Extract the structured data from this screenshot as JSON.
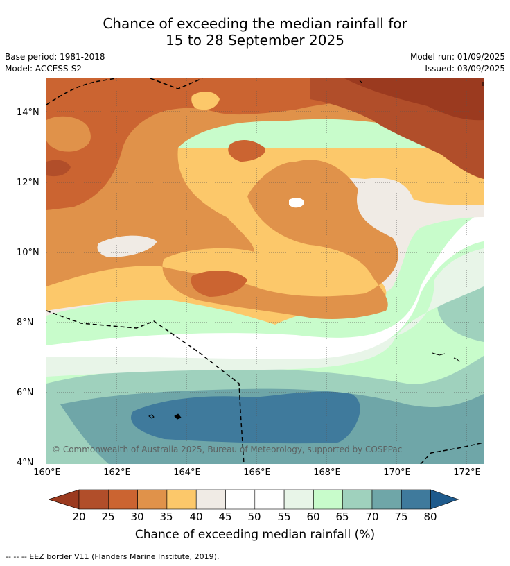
{
  "title": {
    "line1": "Chance of exceeding the median rainfall for",
    "line2": "15 to 28 September 2025"
  },
  "meta": {
    "base_period": "Base period: 1981-2018",
    "model": "Model: ACCESS-S2",
    "model_run": "Model run: 01/09/2025",
    "issued": "Issued: 03/09/2025"
  },
  "axes": {
    "y_ticks": [
      "14°N",
      "12°N",
      "10°N",
      "8°N",
      "6°N",
      "4°N"
    ],
    "x_ticks": [
      "160°E",
      "162°E",
      "164°E",
      "166°E",
      "168°E",
      "170°E",
      "172°E"
    ]
  },
  "colorbar": {
    "ticks": [
      "20",
      "25",
      "30",
      "35",
      "40",
      "45",
      "50",
      "55",
      "60",
      "65",
      "70",
      "75",
      "80"
    ],
    "label": "Chance of exceeding median rainfall (%)",
    "colors": [
      "#9b3a1f",
      "#b14e2a",
      "#cb6431",
      "#e0924a",
      "#fcc86a",
      "#f0ebe5",
      "#ffffff",
      "#ffffff",
      "#e8f5e8",
      "#c8fccb",
      "#9fd1bd",
      "#6fa6a8",
      "#3f7a9c",
      "#1e5a8c"
    ]
  },
  "copyright": "© Commonwealth of Australia 2025, Bureau of Meteorology, supported by COSPPac",
  "legend_note": "-- -- -- EEZ border V11 (Flanders Marine Institute, 2019)."
}
